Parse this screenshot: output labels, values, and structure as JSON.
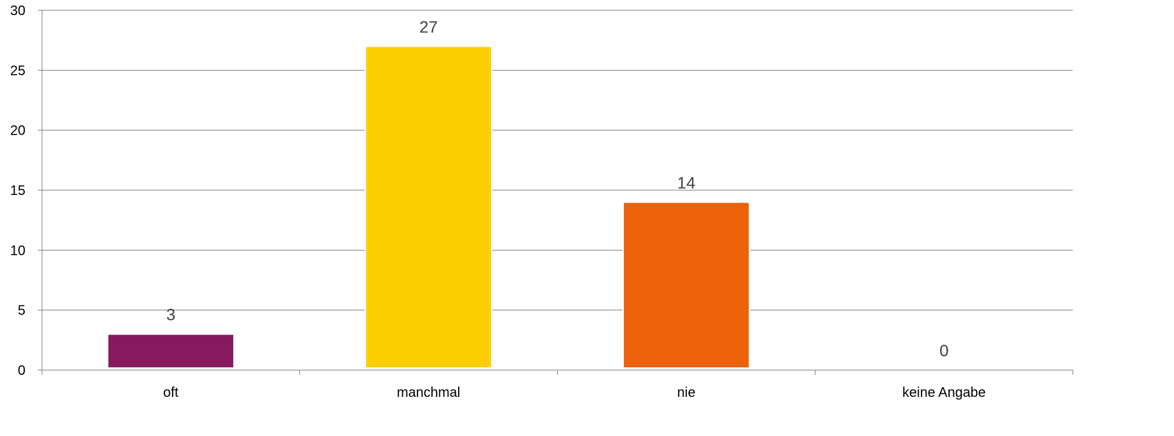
{
  "chart_data": {
    "type": "bar",
    "title": "",
    "xlabel": "",
    "ylabel": "",
    "categories": [
      "oft",
      "manchmal",
      "nie",
      "keine Angabe"
    ],
    "values": [
      3,
      27,
      14,
      0
    ],
    "data_labels": [
      "3",
      "27",
      "14",
      "0"
    ],
    "colors": [
      "#851A5E",
      "#FECF00",
      "#EB6209",
      "#A6A6A6"
    ],
    "ylim": [
      0,
      30
    ],
    "yticks": [
      0,
      5,
      10,
      15,
      20,
      25,
      30
    ],
    "grid": true,
    "legend": "none",
    "gridline_color": "#808080"
  }
}
